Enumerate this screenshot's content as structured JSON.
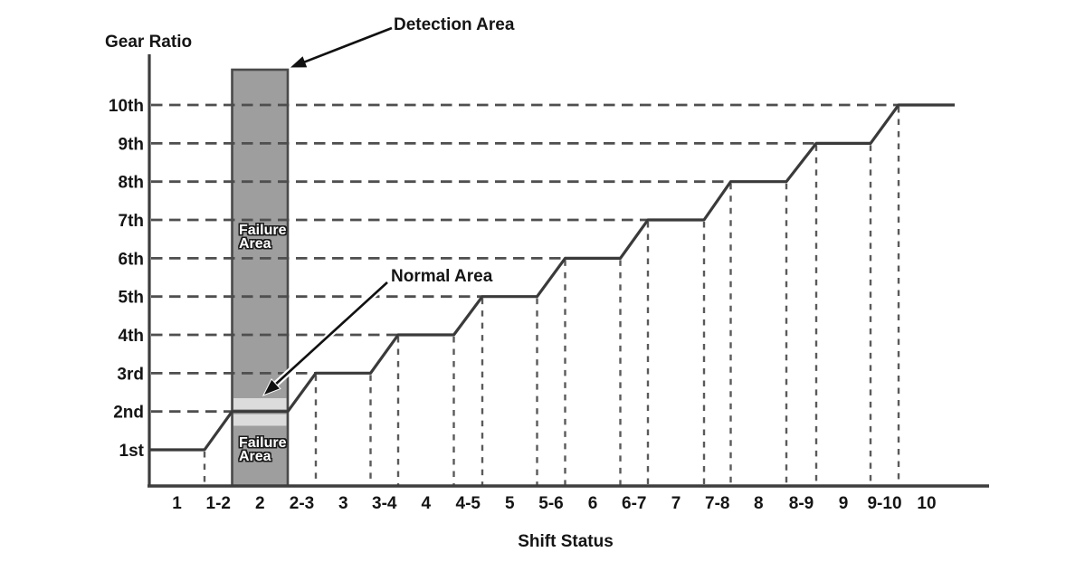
{
  "labels": {
    "y_axis_title": "Gear Ratio",
    "x_axis_title": "Shift Status",
    "detection_area": "Detection Area",
    "normal_area": "Normal Area",
    "failure_area": "Failure\nArea"
  },
  "colors": {
    "background": "#ffffff",
    "axis": "#3d3d3d",
    "step_line": "#3a3a3a",
    "grid_dash_h": "#4f4f4f",
    "grid_dash_v": "#5a5a5a",
    "bar_fill": "#9e9e9e",
    "bar_border": "#4a4a4a",
    "normal_band": "#dcdcdc",
    "text": "#151515",
    "arrow": "#111111",
    "arrow_halo": "#ffffff"
  },
  "chart_data": {
    "type": "line",
    "title": "",
    "xlabel": "Shift Status",
    "ylabel": "Gear Ratio",
    "grid": "dashed",
    "legend": null,
    "x_ticks": [
      "1",
      "1-2",
      "2",
      "2-3",
      "3",
      "3-4",
      "4",
      "4-5",
      "5",
      "5-6",
      "6",
      "6-7",
      "7",
      "7-8",
      "8",
      "8-9",
      "9",
      "9-10",
      "10"
    ],
    "y_ticks": [
      "1st",
      "2nd",
      "3rd",
      "4th",
      "5th",
      "6th",
      "7th",
      "8th",
      "9th",
      "10th"
    ],
    "series": [
      {
        "name": "gear-ratio-steps",
        "segments": [
          {
            "shift": "1",
            "gear_start": 1,
            "gear_end": 1
          },
          {
            "shift": "1-2",
            "gear_start": 1,
            "gear_end": 2
          },
          {
            "shift": "2",
            "gear_start": 2,
            "gear_end": 2
          },
          {
            "shift": "2-3",
            "gear_start": 2,
            "gear_end": 3
          },
          {
            "shift": "3",
            "gear_start": 3,
            "gear_end": 3
          },
          {
            "shift": "3-4",
            "gear_start": 3,
            "gear_end": 4
          },
          {
            "shift": "4",
            "gear_start": 4,
            "gear_end": 4
          },
          {
            "shift": "4-5",
            "gear_start": 4,
            "gear_end": 5
          },
          {
            "shift": "5",
            "gear_start": 5,
            "gear_end": 5
          },
          {
            "shift": "5-6",
            "gear_start": 5,
            "gear_end": 6
          },
          {
            "shift": "6",
            "gear_start": 6,
            "gear_end": 6
          },
          {
            "shift": "6-7",
            "gear_start": 6,
            "gear_end": 7
          },
          {
            "shift": "7",
            "gear_start": 7,
            "gear_end": 7
          },
          {
            "shift": "7-8",
            "gear_start": 7,
            "gear_end": 8
          },
          {
            "shift": "8",
            "gear_start": 8,
            "gear_end": 8
          },
          {
            "shift": "8-9",
            "gear_start": 8,
            "gear_end": 9
          },
          {
            "shift": "9",
            "gear_start": 9,
            "gear_end": 9
          },
          {
            "shift": "9-10",
            "gear_start": 9,
            "gear_end": 10
          },
          {
            "shift": "10",
            "gear_start": 10,
            "gear_end": 10
          }
        ]
      }
    ],
    "regions": {
      "detection_area": {
        "label": "Detection Area",
        "shift": "2",
        "extent": "full-height"
      },
      "normal_area": {
        "label": "Normal Area",
        "gear": "2nd"
      },
      "failure_area": {
        "label": "Failure Area",
        "locations": [
          "above-normal-area",
          "below-normal-area"
        ]
      }
    }
  }
}
